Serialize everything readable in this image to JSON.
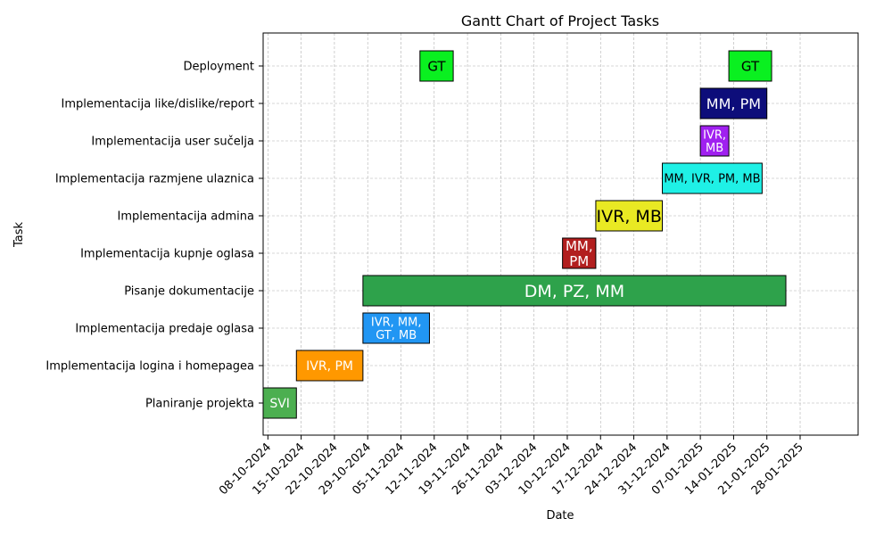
{
  "chart_data": {
    "type": "gantt",
    "title": "Gantt Chart of Project Tasks",
    "xlabel": "Date",
    "ylabel": "Task",
    "grid": true,
    "xlim": [
      "2024-10-07",
      "2025-01-25"
    ],
    "x_ticks": [
      "08-10-2024",
      "15-10-2024",
      "22-10-2024",
      "29-10-2024",
      "05-11-2024",
      "12-11-2024",
      "19-11-2024",
      "26-11-2024",
      "03-12-2024",
      "10-12-2024",
      "17-12-2024",
      "24-12-2024",
      "31-12-2024",
      "07-01-2025",
      "14-01-2025",
      "21-01-2025",
      "28-01-2025"
    ],
    "tasks": [
      {
        "name": "Planiranje projekta",
        "start": "2024-10-07",
        "end": "2024-10-14",
        "label": "SVI",
        "color": "#4caf50",
        "text_color": "#ffffff",
        "label_lines": [
          "SVI"
        ],
        "font_size": 14
      },
      {
        "name": "Implementacija logina i homepagea",
        "start": "2024-10-14",
        "end": "2024-10-28",
        "label": "IVR, PM",
        "color": "#ff9800",
        "text_color": "#ffffff",
        "label_lines": [
          "IVR, PM"
        ],
        "font_size": 14
      },
      {
        "name": "Implementacija predaje oglasa",
        "start": "2024-10-28",
        "end": "2024-11-11",
        "label": "IVR, MM, GT, MB",
        "color": "#2196f3",
        "text_color": "#ffffff",
        "label_lines": [
          "IVR, MM,",
          "GT, MB"
        ],
        "font_size": 13
      },
      {
        "name": "Pisanje dokumentacije",
        "start": "2024-10-28",
        "end": "2025-01-25",
        "label": "DM, PZ, MM",
        "color": "#2ea24b",
        "text_color": "#ffffff",
        "label_lines": [
          "DM, PZ, MM"
        ],
        "font_size": 19
      },
      {
        "name": "Implementacija kupnje oglasa",
        "start": "2024-12-09",
        "end": "2024-12-16",
        "label": "MM, PM",
        "color": "#b21f1f",
        "text_color": "#ffffff",
        "label_lines": [
          "MM,",
          "PM"
        ],
        "font_size": 15
      },
      {
        "name": "Implementacija admina",
        "start": "2024-12-16",
        "end": "2024-12-30",
        "label": "IVR, MB",
        "color": "#e9e923",
        "text_color": "#000000",
        "label_lines": [
          "IVR, MB"
        ],
        "font_size": 19
      },
      {
        "name": "Implementacija razmjene ulaznica",
        "start": "2024-12-30",
        "end": "2025-01-20",
        "label": "MM, IVR, PM, MB",
        "color": "#1ff0e6",
        "text_color": "#000000",
        "label_lines": [
          "MM, IVR, PM, MB"
        ],
        "font_size": 13
      },
      {
        "name": "Implementacija user sučelja",
        "start": "2025-01-07",
        "end": "2025-01-13",
        "label": "IVR, MB",
        "color": "#a020f0",
        "text_color": "#ffffff",
        "label_lines": [
          "IVR,",
          "MB"
        ],
        "font_size": 13
      },
      {
        "name": "Implementacija like/dislike/report",
        "start": "2025-01-07",
        "end": "2025-01-21",
        "label": "MM, PM",
        "color": "#0d0d7a",
        "text_color": "#ffffff",
        "label_lines": [
          "MM, PM"
        ],
        "font_size": 16
      },
      {
        "name": "Deployment",
        "start": "2024-11-09",
        "end": "2024-11-16",
        "label": "GT",
        "color": "#0af020",
        "text_color": "#000000",
        "label_lines": [
          "GT"
        ],
        "font_size": 15
      },
      {
        "name": "Deployment",
        "start": "2025-01-13",
        "end": "2025-01-22",
        "label": "GT",
        "color": "#0af020",
        "text_color": "#000000",
        "label_lines": [
          "GT"
        ],
        "font_size": 15
      }
    ],
    "categories": [
      "Planiranje projekta",
      "Implementacija logina i homepagea",
      "Implementacija predaje oglasa",
      "Pisanje dokumentacije",
      "Implementacija kupnje oglasa",
      "Implementacija admina",
      "Implementacija razmjene ulaznica",
      "Implementacija user sučelja",
      "Implementacija like/dislike/report",
      "Deployment"
    ]
  }
}
